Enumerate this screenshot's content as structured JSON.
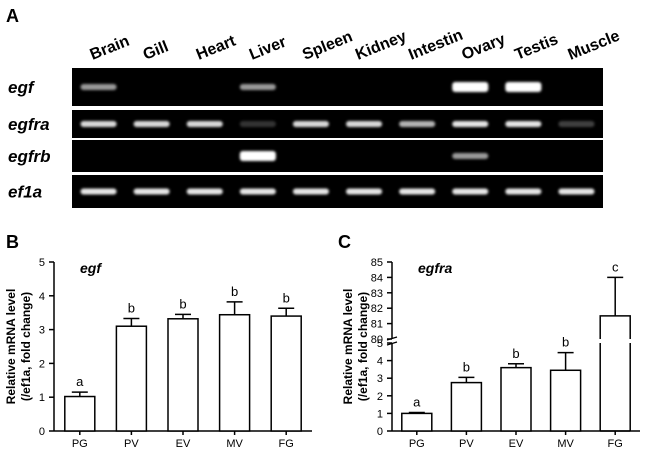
{
  "panel_labels": {
    "a": "A",
    "b": "B",
    "c": "C"
  },
  "gel": {
    "tissues": [
      "Brain",
      "Gill",
      "Heart",
      "Liver",
      "Spleen",
      "Kidney",
      "Intestin",
      "Ovary",
      "Testis",
      "Muscle"
    ],
    "genes": [
      "egf",
      "egfra",
      "egfrb",
      "ef1a"
    ],
    "band_intensity": {
      "egf": [
        0.6,
        0,
        0,
        0.6,
        0,
        0,
        0,
        1.0,
        1.0,
        0
      ],
      "egfra": [
        0.85,
        0.85,
        0.85,
        0.2,
        0.85,
        0.85,
        0.7,
        0.9,
        0.9,
        0.25
      ],
      "egfrb": [
        0,
        0,
        0,
        1.0,
        0,
        0,
        0,
        0.6,
        0,
        0
      ],
      "ef1a": [
        0.9,
        0.9,
        0.9,
        0.9,
        0.9,
        0.9,
        0.9,
        0.9,
        0.9,
        0.9
      ]
    },
    "colors": {
      "background": "#000000",
      "band": "#ffffff"
    }
  },
  "chart_data": [
    {
      "type": "bar",
      "panel": "B",
      "title": "egf",
      "ylabel_line1": "Relative mRNA level",
      "ylabel_line2": "(/ef1a, fold change)",
      "categories": [
        "PG",
        "PV",
        "EV",
        "MV",
        "FG"
      ],
      "values": [
        1.02,
        3.1,
        3.32,
        3.44,
        3.4
      ],
      "errors": [
        0.13,
        0.23,
        0.13,
        0.38,
        0.23
      ],
      "letters": [
        "a",
        "b",
        "b",
        "b",
        "b"
      ],
      "ylim": [
        0,
        5
      ],
      "yticks": [
        "0",
        "1",
        "2",
        "3",
        "4",
        "5"
      ]
    },
    {
      "type": "bar",
      "panel": "C",
      "title": "egfra",
      "ylabel_line1": "Relative mRNA level",
      "ylabel_line2": "(/ef1a, fold change)",
      "categories": [
        "PG",
        "PV",
        "EV",
        "MV",
        "FG"
      ],
      "values": [
        1.0,
        2.75,
        3.6,
        3.45,
        81.5
      ],
      "errors": [
        0.05,
        0.3,
        0.22,
        1.0,
        2.5
      ],
      "letters": [
        "a",
        "b",
        "b",
        "b",
        "c"
      ],
      "axis_break": {
        "lower": [
          0,
          5
        ],
        "upper": [
          80,
          85
        ]
      },
      "yticks_lower": [
        "0",
        "1",
        "2",
        "3",
        "4",
        "5"
      ],
      "yticks_upper": [
        "80",
        "81",
        "82",
        "83",
        "84",
        "85"
      ]
    }
  ]
}
